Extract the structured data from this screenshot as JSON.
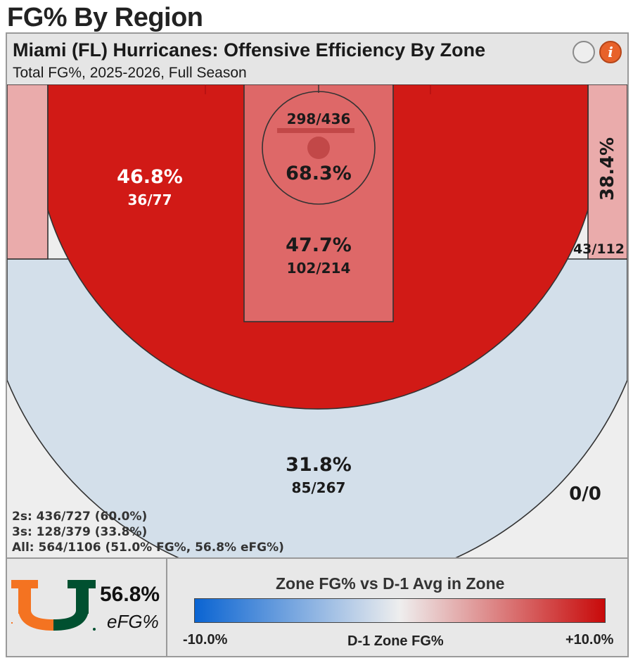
{
  "page": {
    "heading": "FG% By Region"
  },
  "card": {
    "title": "Miami (FL) Hurricanes: Offensive Efficiency By Zone",
    "subtitle": "Total FG%, 2025-2026, Full Season"
  },
  "colors": {
    "hot": "#d11a16",
    "warm": "#de6868",
    "light_warm": "#eaabab",
    "cool": "#d3dfea",
    "neutral": "#eeeeee",
    "accent_orange": "#f47321",
    "accent_green": "#005030"
  },
  "chart_data": {
    "type": "heatmap",
    "title": "Miami (FL) Hurricanes: Offensive Efficiency By Zone",
    "subtitle": "Total FG%, 2025-2026, Full Season",
    "zones": [
      {
        "zone": "restricted-area",
        "fg_pct": "68.3%",
        "made_attempts": "298/436",
        "made": 298,
        "attempts": 436
      },
      {
        "zone": "paint",
        "fg_pct": "47.7%",
        "made_attempts": "102/214",
        "made": 102,
        "attempts": 214
      },
      {
        "zone": "mid-range",
        "fg_pct": "46.8%",
        "made_attempts": "36/77",
        "made": 36,
        "attempts": 77
      },
      {
        "zone": "corner-three",
        "fg_pct": "38.4%",
        "made_attempts": "43/112",
        "made": 43,
        "attempts": 112
      },
      {
        "zone": "above-break-three",
        "fg_pct": "31.8%",
        "made_attempts": "85/267",
        "made": 85,
        "attempts": 267
      },
      {
        "zone": "deep-three",
        "fg_pct": "",
        "made_attempts": "0/0",
        "made": 0,
        "attempts": 0
      }
    ],
    "summary": [
      "2s: 436/727 (60.0%)",
      "3s: 128/379 (33.8%)",
      "All: 564/1106 (51.0% FG%, 56.8% eFG%)"
    ],
    "efg": {
      "value": "56.8%",
      "label": "eFG%"
    },
    "legend": {
      "title": "Zone FG% vs D-1 Avg in Zone",
      "min_label": "-10.0%",
      "mid_label": "D-1 Zone FG%",
      "max_label": "+10.0%",
      "min_color": "#0a64d2",
      "mid_color": "#eeeeee",
      "max_color": "#c80a0a"
    }
  }
}
